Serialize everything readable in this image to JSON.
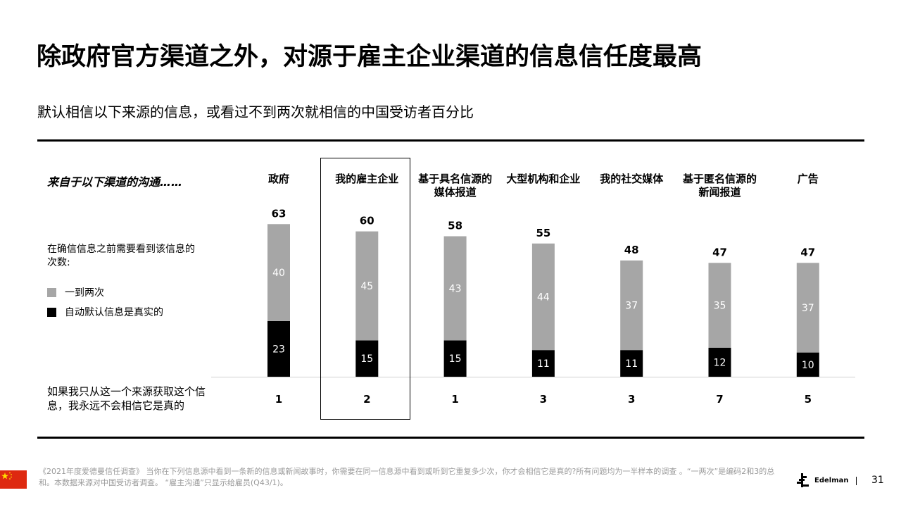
{
  "slide": {
    "title": "除政府官方渠道之外，对源于雇主企业渠道的信息信任度最高",
    "subtitle": "默认相信以下来源的信息，或看过不到两次就相信的中国受访者百分比",
    "row_intro": "来自于以下渠道的沟通……",
    "legend_title": "在确信信息之前需要看到该信息的次数:",
    "legend_items": [
      {
        "label": "一到两次",
        "color": "#a6a6a6"
      },
      {
        "label": "自动默认信息是真实的",
        "color": "#000000"
      }
    ],
    "never_label": "如果我只从这一个来源获取这个信息，我永远不会相信它是真的",
    "highlight_category": "我的雇主企业"
  },
  "chart_data": {
    "type": "bar",
    "stacked": true,
    "categories": [
      "政府",
      "我的雇主企业",
      "基于具名信源的媒体报道",
      "大型机构和企业",
      "我的社交媒体",
      "基于匿名信源的新闻报道",
      "广告"
    ],
    "category_lines": [
      [
        "政府"
      ],
      [
        "我的雇主企业"
      ],
      [
        "基于具名信源的",
        "媒体报道"
      ],
      [
        "大型机构和企业"
      ],
      [
        "我的社交媒体"
      ],
      [
        "基于匿名信源的",
        "新闻报道"
      ],
      [
        "广告"
      ]
    ],
    "series": [
      {
        "name": "自动默认信息是真实的",
        "color": "#000000",
        "values": [
          23,
          15,
          15,
          11,
          11,
          12,
          10
        ]
      },
      {
        "name": "一到两次",
        "color": "#a6a6a6",
        "values": [
          40,
          45,
          43,
          44,
          37,
          35,
          37
        ]
      }
    ],
    "totals": [
      63,
      60,
      58,
      55,
      48,
      47,
      47
    ],
    "never_believe": [
      1,
      2,
      1,
      3,
      3,
      7,
      5
    ]
  },
  "footer": {
    "note": "《2021年度爱德曼信任调查》 当你在下列信息源中看到一条新的信息或新闻故事时，你需要在同一信息源中看到或听到它重复多少次，你才会相信它是真的?所有问题均为一半样本的调查 。“一两次”是编码2和3的总和。本数据来源对中国受访者调查。 “雇主沟通”只显示给雇员(Q43/1)。",
    "brand": "Edelman",
    "page_number": "31",
    "flag_icon": "china-flag-icon",
    "logo_icon": "edelman-logo-icon"
  }
}
